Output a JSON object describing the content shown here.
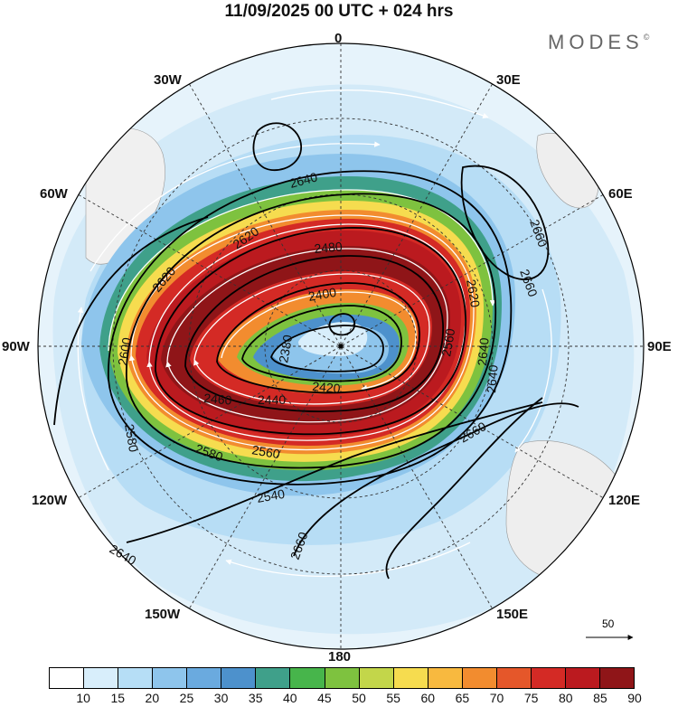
{
  "title": "11/09/2025  00 UTC  + 024 hrs",
  "brand": "MODES",
  "brand_mark": "©",
  "longitude_labels": [
    {
      "id": "lon-0",
      "text": "0"
    },
    {
      "id": "lon-30e",
      "text": "30E"
    },
    {
      "id": "lon-60e",
      "text": "60E"
    },
    {
      "id": "lon-90e",
      "text": "90E"
    },
    {
      "id": "lon-120e",
      "text": "120E"
    },
    {
      "id": "lon-150e",
      "text": "150E"
    },
    {
      "id": "lon-180",
      "text": "180"
    },
    {
      "id": "lon-150w",
      "text": "150W"
    },
    {
      "id": "lon-120w",
      "text": "120W"
    },
    {
      "id": "lon-90w",
      "text": "90W"
    },
    {
      "id": "lon-60w",
      "text": "60W"
    },
    {
      "id": "lon-30w",
      "text": "30W"
    }
  ],
  "contour_labels": [
    "2640",
    "2620",
    "2620",
    "2600",
    "2580",
    "2580",
    "2560",
    "2540",
    "2640",
    "2660",
    "2660",
    "2620",
    "2560",
    "2640",
    "2660",
    "2400",
    "2380",
    "2420",
    "2440",
    "2460",
    "2480",
    "2640",
    "2660"
  ],
  "colorbar": {
    "ticks": [
      "10",
      "15",
      "20",
      "25",
      "30",
      "35",
      "40",
      "45",
      "50",
      "55",
      "60",
      "65",
      "70",
      "75",
      "80",
      "85",
      "90"
    ],
    "colors": [
      "#ffffff",
      "#d8eefb",
      "#b6def6",
      "#8ec5ec",
      "#6aaadf",
      "#4d91cc",
      "#3fa08a",
      "#47b54b",
      "#7ec23f",
      "#c3d64a",
      "#f6dc4f",
      "#f8b93f",
      "#f28c2f",
      "#e5572a",
      "#d42a25",
      "#bb1a1f",
      "#8f1518"
    ]
  },
  "reference_vector": {
    "value": "50"
  }
}
